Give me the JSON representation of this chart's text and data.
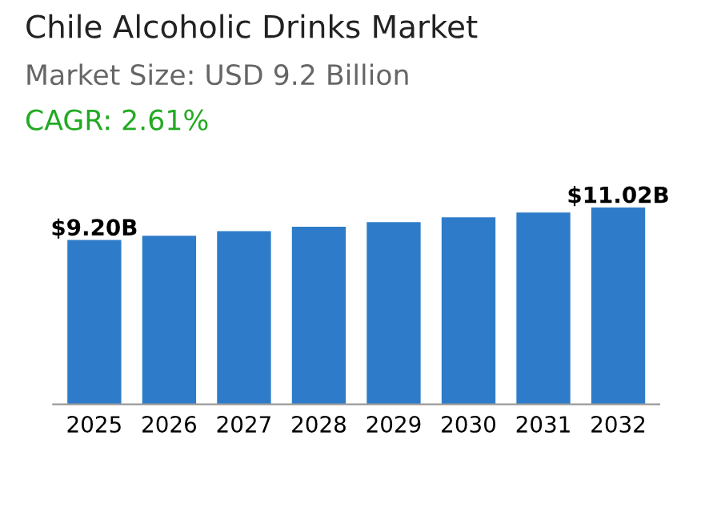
{
  "chart_data": {
    "type": "bar",
    "title": "Chile Alcoholic Drinks Market",
    "subtitle": "Market Size: USD 9.2 Billion",
    "annotations": [
      "CAGR: 2.61%"
    ],
    "categories": [
      "2025",
      "2026",
      "2027",
      "2028",
      "2029",
      "2030",
      "2031",
      "2032"
    ],
    "values": [
      9.2,
      9.44,
      9.69,
      9.94,
      10.2,
      10.47,
      10.74,
      11.02
    ],
    "value_labels": [
      "$9.20B",
      null,
      null,
      null,
      null,
      null,
      null,
      "$11.02B"
    ],
    "color": "#2e7cc9",
    "grid": false,
    "legend": false
  }
}
